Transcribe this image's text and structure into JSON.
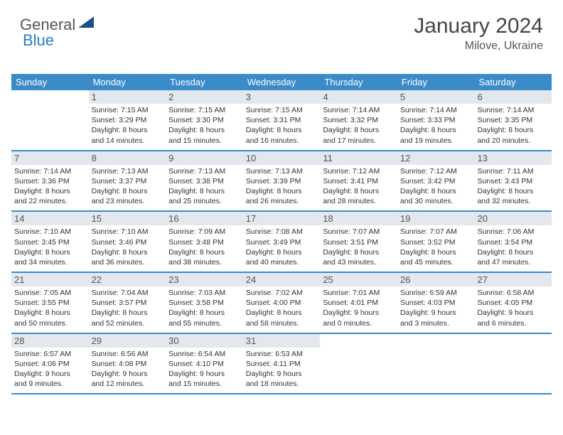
{
  "logo": {
    "part1": "General",
    "part2": "Blue"
  },
  "header": {
    "month_title": "January 2024",
    "location": "Milove, Ukraine"
  },
  "colors": {
    "header_bg": "#3b8bc9",
    "header_text": "#ffffff",
    "row_border": "#3b8bc9",
    "shaded_bg": "#eef2f5",
    "shaded_num_bg": "#e2e8ed",
    "body_text": "#333333",
    "title_text": "#444444",
    "logo_blue": "#2b7bbf",
    "logo_shape": "#1a4f8a"
  },
  "dow": [
    "Sunday",
    "Monday",
    "Tuesday",
    "Wednesday",
    "Thursday",
    "Friday",
    "Saturday"
  ],
  "weeks": [
    [
      {
        "num": "",
        "lines": []
      },
      {
        "num": "1",
        "lines": [
          "Sunrise: 7:15 AM",
          "Sunset: 3:29 PM",
          "Daylight: 8 hours",
          "and 14 minutes."
        ]
      },
      {
        "num": "2",
        "lines": [
          "Sunrise: 7:15 AM",
          "Sunset: 3:30 PM",
          "Daylight: 8 hours",
          "and 15 minutes."
        ]
      },
      {
        "num": "3",
        "lines": [
          "Sunrise: 7:15 AM",
          "Sunset: 3:31 PM",
          "Daylight: 8 hours",
          "and 16 minutes."
        ]
      },
      {
        "num": "4",
        "lines": [
          "Sunrise: 7:14 AM",
          "Sunset: 3:32 PM",
          "Daylight: 8 hours",
          "and 17 minutes."
        ]
      },
      {
        "num": "5",
        "lines": [
          "Sunrise: 7:14 AM",
          "Sunset: 3:33 PM",
          "Daylight: 8 hours",
          "and 19 minutes."
        ]
      },
      {
        "num": "6",
        "lines": [
          "Sunrise: 7:14 AM",
          "Sunset: 3:35 PM",
          "Daylight: 8 hours",
          "and 20 minutes."
        ]
      }
    ],
    [
      {
        "num": "7",
        "lines": [
          "Sunrise: 7:14 AM",
          "Sunset: 3:36 PM",
          "Daylight: 8 hours",
          "and 22 minutes."
        ]
      },
      {
        "num": "8",
        "lines": [
          "Sunrise: 7:13 AM",
          "Sunset: 3:37 PM",
          "Daylight: 8 hours",
          "and 23 minutes."
        ]
      },
      {
        "num": "9",
        "lines": [
          "Sunrise: 7:13 AM",
          "Sunset: 3:38 PM",
          "Daylight: 8 hours",
          "and 25 minutes."
        ]
      },
      {
        "num": "10",
        "lines": [
          "Sunrise: 7:13 AM",
          "Sunset: 3:39 PM",
          "Daylight: 8 hours",
          "and 26 minutes."
        ]
      },
      {
        "num": "11",
        "lines": [
          "Sunrise: 7:12 AM",
          "Sunset: 3:41 PM",
          "Daylight: 8 hours",
          "and 28 minutes."
        ]
      },
      {
        "num": "12",
        "lines": [
          "Sunrise: 7:12 AM",
          "Sunset: 3:42 PM",
          "Daylight: 8 hours",
          "and 30 minutes."
        ]
      },
      {
        "num": "13",
        "lines": [
          "Sunrise: 7:11 AM",
          "Sunset: 3:43 PM",
          "Daylight: 8 hours",
          "and 32 minutes."
        ]
      }
    ],
    [
      {
        "num": "14",
        "lines": [
          "Sunrise: 7:10 AM",
          "Sunset: 3:45 PM",
          "Daylight: 8 hours",
          "and 34 minutes."
        ]
      },
      {
        "num": "15",
        "lines": [
          "Sunrise: 7:10 AM",
          "Sunset: 3:46 PM",
          "Daylight: 8 hours",
          "and 36 minutes."
        ]
      },
      {
        "num": "16",
        "lines": [
          "Sunrise: 7:09 AM",
          "Sunset: 3:48 PM",
          "Daylight: 8 hours",
          "and 38 minutes."
        ]
      },
      {
        "num": "17",
        "lines": [
          "Sunrise: 7:08 AM",
          "Sunset: 3:49 PM",
          "Daylight: 8 hours",
          "and 40 minutes."
        ]
      },
      {
        "num": "18",
        "lines": [
          "Sunrise: 7:07 AM",
          "Sunset: 3:51 PM",
          "Daylight: 8 hours",
          "and 43 minutes."
        ]
      },
      {
        "num": "19",
        "lines": [
          "Sunrise: 7:07 AM",
          "Sunset: 3:52 PM",
          "Daylight: 8 hours",
          "and 45 minutes."
        ]
      },
      {
        "num": "20",
        "lines": [
          "Sunrise: 7:06 AM",
          "Sunset: 3:54 PM",
          "Daylight: 8 hours",
          "and 47 minutes."
        ]
      }
    ],
    [
      {
        "num": "21",
        "lines": [
          "Sunrise: 7:05 AM",
          "Sunset: 3:55 PM",
          "Daylight: 8 hours",
          "and 50 minutes."
        ]
      },
      {
        "num": "22",
        "lines": [
          "Sunrise: 7:04 AM",
          "Sunset: 3:57 PM",
          "Daylight: 8 hours",
          "and 52 minutes."
        ]
      },
      {
        "num": "23",
        "lines": [
          "Sunrise: 7:03 AM",
          "Sunset: 3:58 PM",
          "Daylight: 8 hours",
          "and 55 minutes."
        ]
      },
      {
        "num": "24",
        "lines": [
          "Sunrise: 7:02 AM",
          "Sunset: 4:00 PM",
          "Daylight: 8 hours",
          "and 58 minutes."
        ]
      },
      {
        "num": "25",
        "lines": [
          "Sunrise: 7:01 AM",
          "Sunset: 4:01 PM",
          "Daylight: 9 hours",
          "and 0 minutes."
        ]
      },
      {
        "num": "26",
        "lines": [
          "Sunrise: 6:59 AM",
          "Sunset: 4:03 PM",
          "Daylight: 9 hours",
          "and 3 minutes."
        ]
      },
      {
        "num": "27",
        "lines": [
          "Sunrise: 6:58 AM",
          "Sunset: 4:05 PM",
          "Daylight: 9 hours",
          "and 6 minutes."
        ]
      }
    ],
    [
      {
        "num": "28",
        "lines": [
          "Sunrise: 6:57 AM",
          "Sunset: 4:06 PM",
          "Daylight: 9 hours",
          "and 9 minutes."
        ]
      },
      {
        "num": "29",
        "lines": [
          "Sunrise: 6:56 AM",
          "Sunset: 4:08 PM",
          "Daylight: 9 hours",
          "and 12 minutes."
        ]
      },
      {
        "num": "30",
        "lines": [
          "Sunrise: 6:54 AM",
          "Sunset: 4:10 PM",
          "Daylight: 9 hours",
          "and 15 minutes."
        ]
      },
      {
        "num": "31",
        "lines": [
          "Sunrise: 6:53 AM",
          "Sunset: 4:11 PM",
          "Daylight: 9 hours",
          "and 18 minutes."
        ]
      },
      {
        "num": "",
        "lines": []
      },
      {
        "num": "",
        "lines": []
      },
      {
        "num": "",
        "lines": []
      }
    ]
  ]
}
